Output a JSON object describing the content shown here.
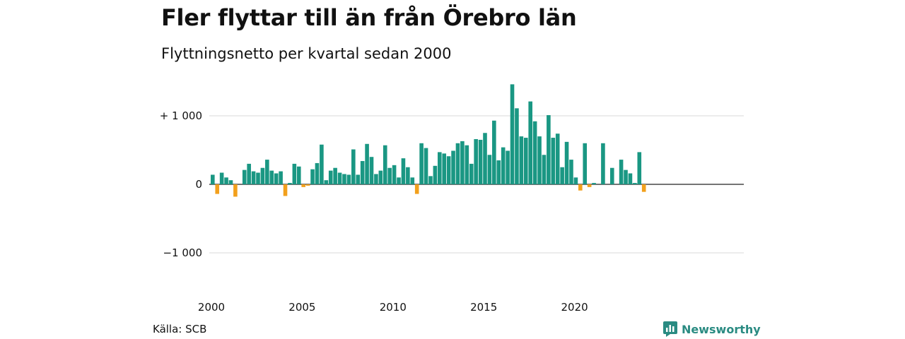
{
  "header": {
    "title": "Fler flyttar till än från Örebro län",
    "subtitle": "Flyttningsnetto per kvartal sedan 2000"
  },
  "footer": {
    "source": "Källa: SCB",
    "brand": "Newsworthy"
  },
  "colors": {
    "positive": "#1a9783",
    "negative": "#f2a01c",
    "grid": "#d9d9d9",
    "axis": "#222222",
    "brand": "#2a8b82"
  },
  "chart_data": {
    "type": "bar",
    "title": "Fler flyttar till än från Örebro län",
    "subtitle": "Flyttningsnetto per kvartal sedan 2000",
    "xlabel": "",
    "ylabel": "",
    "x_start": "2000-Q1",
    "ylim": [
      -1300,
      1500
    ],
    "y_ticks": [
      {
        "value": 1000,
        "label": "+ 1 000"
      },
      {
        "value": 0,
        "label": "0"
      },
      {
        "value": -1000,
        "label": "−1 000"
      }
    ],
    "x_ticks": [
      {
        "year": 2000,
        "label": "2000"
      },
      {
        "year": 2005,
        "label": "2005"
      },
      {
        "year": 2010,
        "label": "2010"
      },
      {
        "year": 2015,
        "label": "2015"
      },
      {
        "year": 2020,
        "label": "2020"
      }
    ],
    "grid": true,
    "legend": "none",
    "values": [
      140,
      -140,
      170,
      100,
      60,
      -180,
      0,
      210,
      300,
      190,
      170,
      240,
      360,
      200,
      160,
      190,
      -170,
      20,
      300,
      260,
      -40,
      -20,
      220,
      310,
      580,
      60,
      200,
      240,
      170,
      150,
      140,
      510,
      140,
      340,
      590,
      400,
      150,
      200,
      570,
      240,
      280,
      100,
      380,
      250,
      100,
      -140,
      600,
      530,
      120,
      270,
      470,
      450,
      410,
      490,
      600,
      630,
      570,
      300,
      660,
      650,
      750,
      430,
      930,
      350,
      540,
      490,
      1460,
      1110,
      700,
      680,
      1210,
      920,
      700,
      430,
      1010,
      680,
      740,
      250,
      620,
      360,
      100,
      -90,
      600,
      -40,
      20,
      0,
      600,
      0,
      240,
      0,
      360,
      210,
      160,
      20,
      470,
      -110
    ]
  }
}
